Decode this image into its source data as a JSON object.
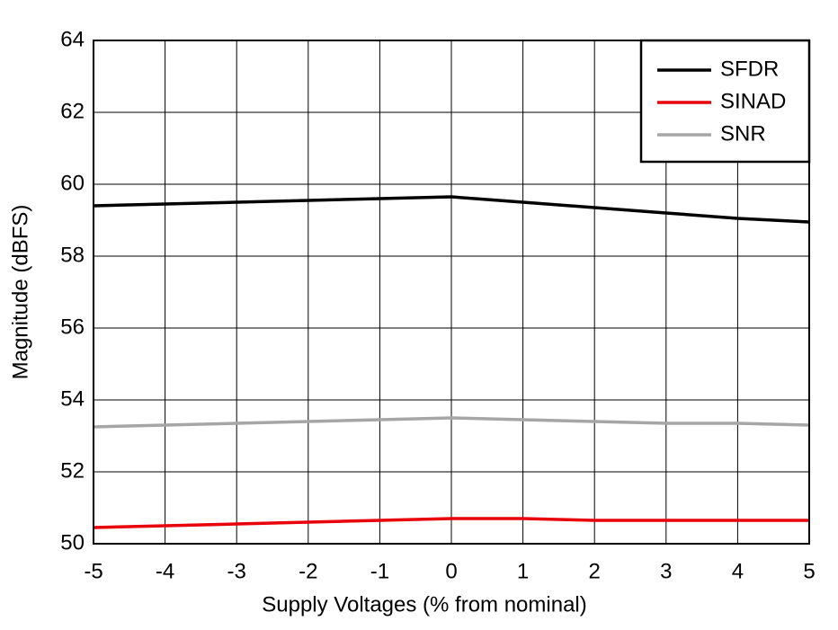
{
  "chart_data": {
    "type": "line",
    "x_label": "Supply Voltages (% from nominal)",
    "y_label": "Magnitude (dBFS)",
    "x": [
      -5,
      -4,
      -3,
      -2,
      -1,
      0,
      1,
      2,
      3,
      4,
      5
    ],
    "series": [
      {
        "name": "SFDR",
        "color": "#000000",
        "values": [
          59.4,
          59.45,
          59.5,
          59.55,
          59.6,
          59.65,
          59.5,
          59.35,
          59.2,
          59.05,
          58.95
        ]
      },
      {
        "name": "SINAD",
        "color": "#e8000b",
        "values": [
          50.45,
          50.5,
          50.55,
          50.6,
          50.65,
          50.7,
          50.7,
          50.65,
          50.65,
          50.65,
          50.65
        ]
      },
      {
        "name": "SNR",
        "color": "#a6a6a6",
        "values": [
          53.25,
          53.3,
          53.35,
          53.4,
          53.45,
          53.5,
          53.45,
          53.4,
          53.35,
          53.35,
          53.3
        ]
      }
    ],
    "xlim": [
      -5,
      5
    ],
    "xticks": [
      -5,
      -4,
      -3,
      -2,
      -1,
      0,
      1,
      2,
      3,
      4,
      5
    ],
    "ylim": [
      50,
      64
    ],
    "yticks": [
      50,
      52,
      54,
      56,
      58,
      60,
      62,
      64
    ],
    "grid": true,
    "legend": "upper right"
  }
}
